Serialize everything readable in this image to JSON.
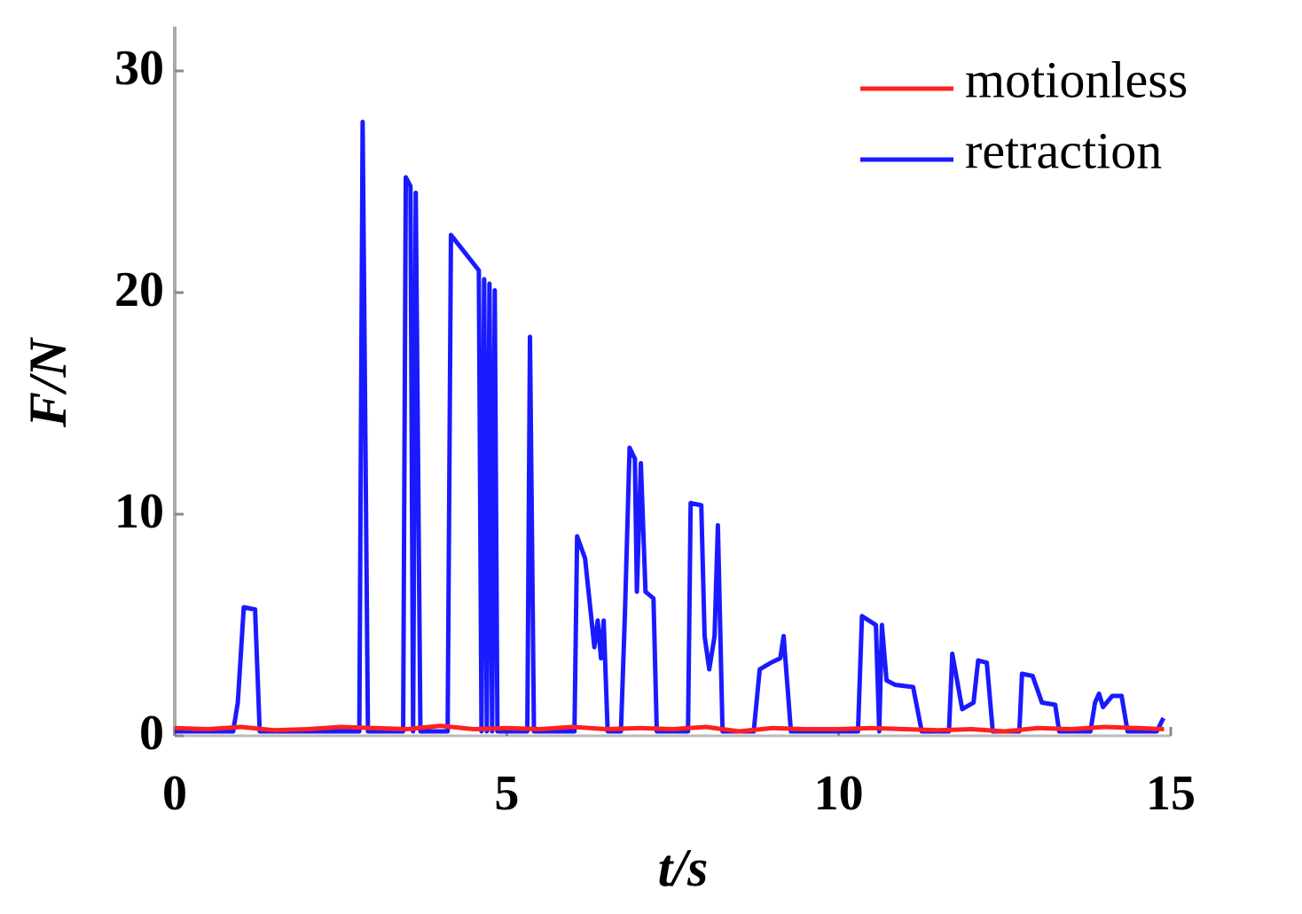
{
  "chart_data": {
    "type": "line",
    "xlabel": "t/s",
    "ylabel": "F/N",
    "xlim": [
      0,
      15
    ],
    "ylim": [
      0,
      32
    ],
    "xticks": [
      0,
      5,
      10,
      15
    ],
    "yticks": [
      0,
      10,
      20,
      30
    ],
    "grid": false,
    "legend": "upper right",
    "series": [
      {
        "name": "motionless",
        "color": "#ff2020",
        "x": [
          0,
          0.5,
          1,
          1.5,
          2,
          2.5,
          3,
          3.5,
          4,
          4.5,
          5,
          5.5,
          6,
          6.5,
          7,
          7.5,
          8,
          8.5,
          9,
          9.5,
          10,
          10.5,
          11,
          11.5,
          12,
          12.5,
          13,
          13.5,
          14,
          14.5,
          14.9
        ],
        "values": [
          0.35,
          0.3,
          0.4,
          0.25,
          0.3,
          0.4,
          0.35,
          0.3,
          0.45,
          0.3,
          0.35,
          0.3,
          0.4,
          0.3,
          0.35,
          0.3,
          0.4,
          0.2,
          0.35,
          0.3,
          0.3,
          0.35,
          0.3,
          0.25,
          0.3,
          0.2,
          0.35,
          0.3,
          0.4,
          0.35,
          0.3
        ]
      },
      {
        "name": "retraction",
        "color": "#1a1aff",
        "x": [
          0,
          0.88,
          0.95,
          1.04,
          1.21,
          1.28,
          2.78,
          2.83,
          2.91,
          3.44,
          3.48,
          3.55,
          3.59,
          3.63,
          3.7,
          4.11,
          4.16,
          4.58,
          4.62,
          4.66,
          4.7,
          4.74,
          4.78,
          4.82,
          4.86,
          5.31,
          5.35,
          5.41,
          6.02,
          6.06,
          6.18,
          6.32,
          6.37,
          6.42,
          6.46,
          6.52,
          6.72,
          6.78,
          6.85,
          6.93,
          6.96,
          7.02,
          7.09,
          7.21,
          7.26,
          7.73,
          7.77,
          7.93,
          7.98,
          8.05,
          8.13,
          8.18,
          8.25,
          8.72,
          8.81,
          8.98,
          9.12,
          9.17,
          9.28,
          10.29,
          10.35,
          10.56,
          10.61,
          10.65,
          10.72,
          10.85,
          11.12,
          11.25,
          11.66,
          11.71,
          11.86,
          12.03,
          12.1,
          12.23,
          12.32,
          12.72,
          12.76,
          12.92,
          13.06,
          13.26,
          13.32,
          13.79,
          13.86,
          13.92,
          13.98,
          14.12,
          14.26,
          14.35,
          14.79,
          14.89
        ],
        "values": [
          0.2,
          0.2,
          1.5,
          5.8,
          5.7,
          0.2,
          0.2,
          27.7,
          0.2,
          0.2,
          25.2,
          24.8,
          0.2,
          24.5,
          0.2,
          0.2,
          22.6,
          21,
          0.2,
          20.6,
          0.2,
          20.4,
          0.2,
          20.1,
          0.2,
          0.2,
          18,
          0.2,
          0.2,
          9,
          8,
          4,
          5.2,
          3.5,
          5.2,
          0.2,
          0.2,
          5.5,
          13,
          12.5,
          6.5,
          12.3,
          6.5,
          6.2,
          0.2,
          0.2,
          10.5,
          10.4,
          4.5,
          3,
          4.5,
          9.5,
          0.2,
          0.2,
          3,
          3.3,
          3.5,
          4.5,
          0.2,
          0.2,
          5.4,
          5,
          0.2,
          5,
          2.5,
          2.3,
          2.2,
          0.2,
          0.2,
          3.7,
          1.2,
          1.5,
          3.4,
          3.3,
          0.2,
          0.2,
          2.8,
          2.7,
          1.5,
          1.4,
          0.2,
          0.2,
          1.5,
          1.9,
          1.3,
          1.8,
          1.8,
          0.2,
          0.2,
          0.8
        ]
      }
    ]
  }
}
